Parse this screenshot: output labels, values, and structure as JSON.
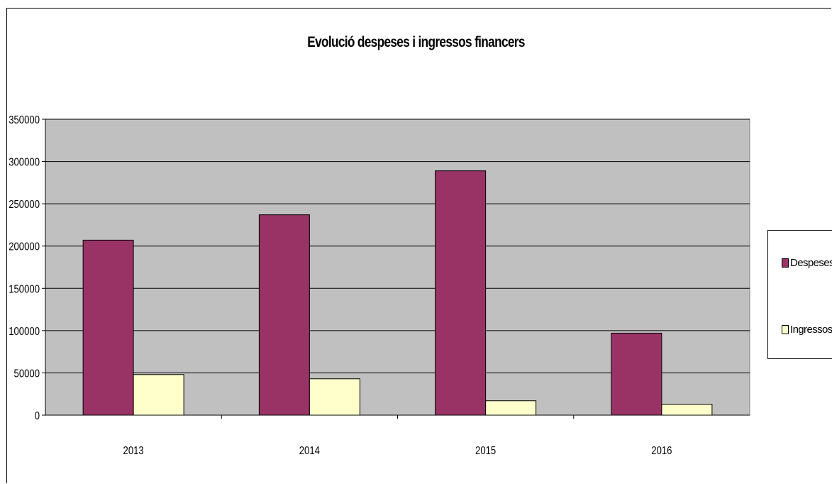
{
  "chart_data": {
    "type": "bar",
    "title": "Evolució despeses i ingressos financers",
    "categories": [
      "2013",
      "2014",
      "2015",
      "2016"
    ],
    "series": [
      {
        "name": "Despeses",
        "values": [
          207000,
          237000,
          289000,
          97000
        ],
        "color": "#993366"
      },
      {
        "name": "Ingressos",
        "values": [
          48000,
          43000,
          17000,
          13000
        ],
        "color": "#FFFFCC"
      }
    ],
    "y_ticks": [
      "0",
      "50000",
      "100000",
      "150000",
      "200000",
      "250000",
      "300000",
      "350000"
    ],
    "ylim": [
      0,
      350000
    ],
    "xlabel": "",
    "ylabel": "",
    "grid": true,
    "plot_background": "#C0C0C0",
    "legend_position": "right"
  }
}
